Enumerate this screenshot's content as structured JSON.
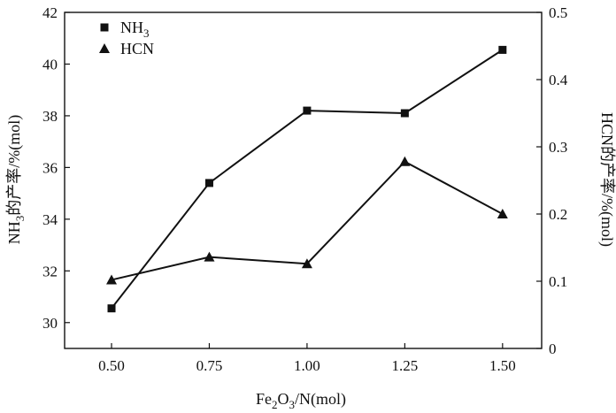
{
  "chart_data": {
    "type": "line",
    "x": [
      0.5,
      0.75,
      1.0,
      1.25,
      1.5
    ],
    "x_tick_labels": [
      "0.50",
      "0.75",
      "1.00",
      "1.25",
      "1.50"
    ],
    "xlim": [
      0.38,
      1.6
    ],
    "xlabel": {
      "main": "Fe",
      "sub1": "2",
      "mid": "O",
      "sub2": "3",
      "tail": "/N(mol)"
    },
    "ylim_left": [
      29,
      42
    ],
    "y_left_ticks": [
      30,
      32,
      34,
      36,
      38,
      40,
      42
    ],
    "ylabel_left": {
      "main": "NH",
      "sub": "3",
      "tail": "的产率/%(mol)"
    },
    "ylim_right": [
      0,
      0.5
    ],
    "y_right_ticks": [
      "0",
      "0.1",
      "0.2",
      "0.3",
      "0.4",
      "0.5"
    ],
    "ylabel_right": "HCN的产率/%(mol)",
    "legend_position": "top-left",
    "series": [
      {
        "name": "NH",
        "name_sub": "3",
        "axis": "left",
        "marker": "square",
        "values": [
          30.55,
          35.4,
          38.2,
          38.1,
          40.55
        ]
      },
      {
        "name": "HCN",
        "name_sub": "",
        "axis": "right",
        "marker": "triangle",
        "values": [
          0.102,
          0.136,
          0.126,
          0.278,
          0.2
        ]
      }
    ]
  }
}
